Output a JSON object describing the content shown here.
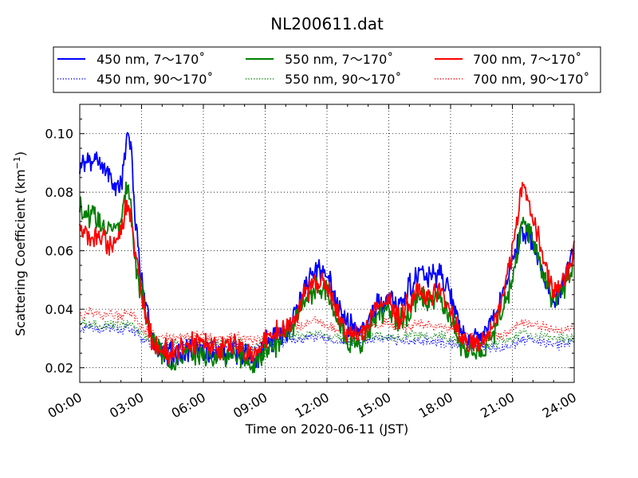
{
  "chart_data": {
    "type": "line",
    "title": "NL200611.dat",
    "xlabel": "Time on 2020-06-11 (JST)",
    "ylabel_main": "Scattering Coefficient (km",
    "ylabel_sup": "−1",
    "ylabel_close": ")",
    "xlim": [
      "00:00",
      "24:00"
    ],
    "ylim": [
      0.015,
      0.11
    ],
    "grid": true,
    "legend_position": "top",
    "x_ticks": [
      "00:00",
      "03:00",
      "06:00",
      "09:00",
      "12:00",
      "15:00",
      "18:00",
      "21:00",
      "24:00"
    ],
    "y_ticks": [
      "0.02",
      "0.04",
      "0.06",
      "0.08",
      "0.10"
    ],
    "y_tick_values": [
      0.02,
      0.04,
      0.06,
      0.08,
      0.1
    ],
    "x_hours": [
      0,
      0.5,
      1,
      1.5,
      2,
      2.3,
      2.5,
      2.7,
      3,
      3.5,
      4,
      4.5,
      5,
      5.5,
      6,
      6.5,
      7,
      7.5,
      8,
      8.5,
      9,
      9.5,
      10,
      10.5,
      11,
      11.5,
      12,
      12.5,
      13,
      13.5,
      14,
      14.5,
      15,
      15.5,
      16,
      16.5,
      17,
      17.5,
      18,
      18.5,
      19,
      19.5,
      20,
      20.5,
      21,
      21.5,
      22,
      22.5,
      23,
      23.5,
      24
    ],
    "series": [
      {
        "name": "450 nm, 7～170˚",
        "color": "#0000ff",
        "style": "solid",
        "values": [
          0.088,
          0.092,
          0.09,
          0.085,
          0.082,
          0.1,
          0.095,
          0.07,
          0.05,
          0.03,
          0.025,
          0.024,
          0.025,
          0.026,
          0.026,
          0.025,
          0.025,
          0.026,
          0.024,
          0.022,
          0.028,
          0.03,
          0.032,
          0.04,
          0.048,
          0.054,
          0.052,
          0.042,
          0.035,
          0.032,
          0.036,
          0.042,
          0.044,
          0.04,
          0.048,
          0.052,
          0.05,
          0.052,
          0.045,
          0.032,
          0.03,
          0.03,
          0.036,
          0.045,
          0.055,
          0.068,
          0.062,
          0.05,
          0.042,
          0.05,
          0.062
        ]
      },
      {
        "name": "550 nm, 7～170˚",
        "color": "#008000",
        "style": "solid",
        "values": [
          0.075,
          0.072,
          0.07,
          0.068,
          0.07,
          0.083,
          0.075,
          0.055,
          0.045,
          0.03,
          0.024,
          0.023,
          0.024,
          0.025,
          0.025,
          0.024,
          0.024,
          0.025,
          0.023,
          0.021,
          0.026,
          0.028,
          0.03,
          0.036,
          0.042,
          0.048,
          0.046,
          0.036,
          0.03,
          0.028,
          0.032,
          0.038,
          0.04,
          0.035,
          0.04,
          0.045,
          0.042,
          0.044,
          0.038,
          0.028,
          0.026,
          0.026,
          0.03,
          0.04,
          0.05,
          0.07,
          0.064,
          0.052,
          0.043,
          0.046,
          0.058
        ]
      },
      {
        "name": "700 nm, 7～170˚",
        "color": "#ff0000",
        "style": "solid",
        "values": [
          0.068,
          0.065,
          0.064,
          0.062,
          0.066,
          0.078,
          0.072,
          0.058,
          0.045,
          0.03,
          0.026,
          0.026,
          0.027,
          0.028,
          0.028,
          0.027,
          0.027,
          0.028,
          0.026,
          0.024,
          0.03,
          0.032,
          0.033,
          0.038,
          0.046,
          0.05,
          0.048,
          0.038,
          0.032,
          0.03,
          0.035,
          0.042,
          0.043,
          0.037,
          0.042,
          0.047,
          0.044,
          0.046,
          0.04,
          0.03,
          0.028,
          0.028,
          0.033,
          0.043,
          0.058,
          0.085,
          0.07,
          0.058,
          0.046,
          0.05,
          0.06
        ]
      },
      {
        "name": "450 nm, 90～170˚",
        "color": "#0000ff",
        "style": "dotted",
        "values": [
          0.033,
          0.034,
          0.033,
          0.034,
          0.032,
          0.034,
          0.033,
          0.032,
          0.03,
          0.028,
          0.027,
          0.027,
          0.027,
          0.028,
          0.028,
          0.027,
          0.027,
          0.028,
          0.027,
          0.026,
          0.028,
          0.029,
          0.029,
          0.03,
          0.03,
          0.031,
          0.03,
          0.029,
          0.029,
          0.029,
          0.03,
          0.03,
          0.03,
          0.029,
          0.029,
          0.029,
          0.029,
          0.029,
          0.028,
          0.028,
          0.028,
          0.027,
          0.027,
          0.027,
          0.028,
          0.03,
          0.029,
          0.029,
          0.028,
          0.028,
          0.029
        ]
      },
      {
        "name": "550 nm, 90～170˚",
        "color": "#008000",
        "style": "dotted",
        "values": [
          0.035,
          0.035,
          0.034,
          0.035,
          0.034,
          0.036,
          0.035,
          0.034,
          0.032,
          0.029,
          0.028,
          0.028,
          0.028,
          0.029,
          0.029,
          0.028,
          0.028,
          0.029,
          0.028,
          0.027,
          0.029,
          0.03,
          0.03,
          0.031,
          0.031,
          0.032,
          0.031,
          0.03,
          0.03,
          0.03,
          0.031,
          0.031,
          0.031,
          0.03,
          0.031,
          0.031,
          0.03,
          0.031,
          0.03,
          0.029,
          0.029,
          0.028,
          0.028,
          0.029,
          0.03,
          0.032,
          0.031,
          0.031,
          0.03,
          0.03,
          0.031
        ]
      },
      {
        "name": "700 nm, 90～170˚",
        "color": "#ff0000",
        "style": "dotted",
        "values": [
          0.038,
          0.039,
          0.038,
          0.039,
          0.037,
          0.04,
          0.039,
          0.037,
          0.034,
          0.031,
          0.03,
          0.03,
          0.03,
          0.031,
          0.031,
          0.03,
          0.03,
          0.031,
          0.03,
          0.029,
          0.031,
          0.032,
          0.033,
          0.034,
          0.035,
          0.036,
          0.035,
          0.033,
          0.033,
          0.033,
          0.034,
          0.035,
          0.035,
          0.034,
          0.034,
          0.035,
          0.034,
          0.034,
          0.033,
          0.031,
          0.031,
          0.03,
          0.031,
          0.031,
          0.033,
          0.036,
          0.035,
          0.034,
          0.033,
          0.033,
          0.034
        ]
      }
    ]
  }
}
